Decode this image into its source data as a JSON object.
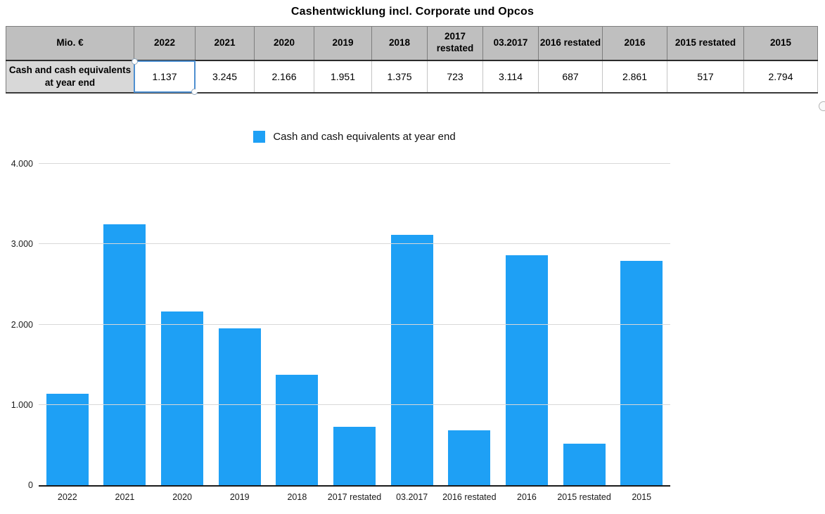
{
  "title": "Cashentwicklung incl. Corporate und Opcos",
  "table": {
    "unit_header": "Mio. €",
    "row_header": "Cash and cash equivalents at year end",
    "columns": [
      "2022",
      "2021",
      "2020",
      "2019",
      "2018",
      "2017 restated",
      "03.2017",
      "2016 restated",
      "2016",
      "2015 restated",
      "2015"
    ],
    "values": [
      "1.137",
      "3.245",
      "2.166",
      "1.951",
      "1.375",
      "723",
      "3.114",
      "687",
      "2.861",
      "517",
      "2.794"
    ],
    "selected_column_index": 0,
    "colors": {
      "header_bg": "#bfbfbf",
      "row_header_bg": "#d8d8d8",
      "selection_border": "#4e8fd0"
    }
  },
  "chart_data": {
    "type": "bar",
    "title": "",
    "categories": [
      "2022",
      "2021",
      "2020",
      "2019",
      "2018",
      "2017 restated",
      "03.2017",
      "2016 restated",
      "2016",
      "2015 restated",
      "2015"
    ],
    "series": [
      {
        "name": "Cash and cash equivalents at year end",
        "values": [
          1137,
          3245,
          2166,
          1951,
          1375,
          723,
          3114,
          687,
          2861,
          517,
          2794
        ]
      }
    ],
    "xlabel": "",
    "ylabel": "",
    "ylim": [
      0,
      4000
    ],
    "yticks": [
      0,
      1000,
      2000,
      3000,
      4000
    ],
    "ytick_labels": [
      "0",
      "1.000",
      "2.000",
      "3.000",
      "4.000"
    ],
    "grid": true,
    "legend_position": "top-center",
    "colors": {
      "bar": "#1ea0f5",
      "gridline": "#d8d8d8",
      "axis": "#1a1a1a"
    }
  }
}
